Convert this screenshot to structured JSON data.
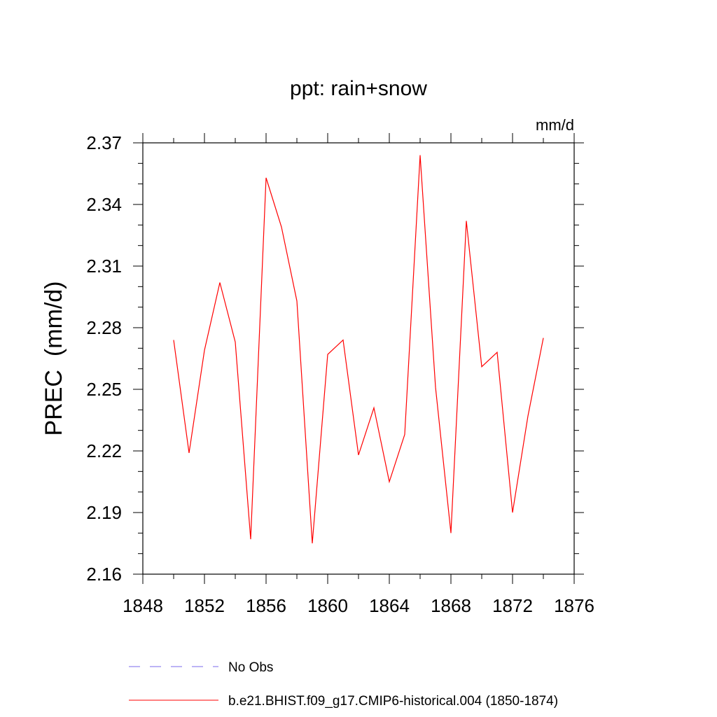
{
  "chart_data": {
    "type": "line",
    "title": "ppt: rain+snow",
    "units_label": "mm/d",
    "ylabel": "PREC  (mm/d)",
    "xlabel": "",
    "xlim": [
      1848,
      1876
    ],
    "ylim": [
      2.16,
      2.37
    ],
    "x_ticks": [
      1848,
      1852,
      1856,
      1860,
      1864,
      1868,
      1872,
      1876
    ],
    "x_tick_labels": [
      "1848",
      "1852",
      "1856",
      "1860",
      "1864",
      "1868",
      "1872",
      "1876"
    ],
    "y_ticks": [
      2.16,
      2.19,
      2.22,
      2.25,
      2.28,
      2.31,
      2.34,
      2.37
    ],
    "y_tick_labels": [
      "2.16",
      "2.19",
      "2.22",
      "2.25",
      "2.28",
      "2.31",
      "2.34",
      "2.37"
    ],
    "grid": false,
    "series": [
      {
        "name": "b.e21.BHIST.f09_g17.CMIP6-historical.004 (1850-1874)",
        "color": "#ff0000",
        "dash": "solid",
        "x": [
          1850,
          1851,
          1852,
          1853,
          1854,
          1855,
          1856,
          1857,
          1858,
          1859,
          1860,
          1861,
          1862,
          1863,
          1864,
          1865,
          1866,
          1867,
          1868,
          1869,
          1870,
          1871,
          1872,
          1873,
          1874
        ],
        "values": [
          2.274,
          2.219,
          2.269,
          2.302,
          2.273,
          2.177,
          2.353,
          2.329,
          2.293,
          2.175,
          2.267,
          2.274,
          2.218,
          2.241,
          2.205,
          2.228,
          2.364,
          2.251,
          2.18,
          2.332,
          2.261,
          2.268,
          2.19,
          2.237,
          2.275
        ]
      }
    ],
    "legend": [
      {
        "label": "No Obs",
        "color": "#7b68ee",
        "dash": "dashed"
      },
      {
        "label": "b.e21.BHIST.f09_g17.CMIP6-historical.004 (1850-1874)",
        "color": "#ff0000",
        "dash": "solid"
      }
    ]
  }
}
